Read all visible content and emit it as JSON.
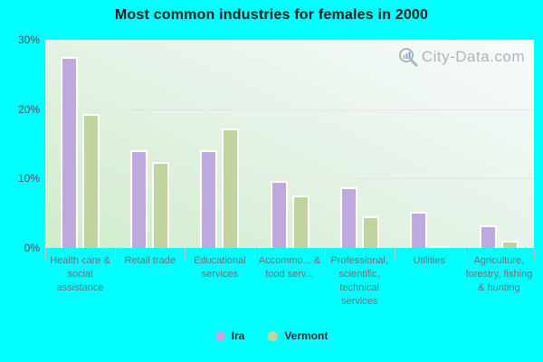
{
  "title": "Most common industries for females in 2000",
  "watermark": {
    "text": "City-Data.com",
    "icon": "magnifier-icon"
  },
  "colors": {
    "background": "#00ffff",
    "ira_bar": "#bda9dd",
    "vermont_bar": "#c1d4a0",
    "bar_border": "#ffffff",
    "gridline": "#eae2ea",
    "y_label": "#4f5058",
    "x_label": "#6e7277",
    "title_text": "#1b1b22",
    "legend_text": "#2e2e36",
    "watermark_text": "#9aa5ad"
  },
  "chart_data": {
    "type": "bar",
    "title": "Most common industries for females in 2000",
    "categories": [
      "Health care & social assistance",
      "Retail trade",
      "Educational services",
      "Accommo... & food serv...",
      "Professional, scientific, technical services",
      "Utilities",
      "Agriculture, forestry, fishing & hunting"
    ],
    "series": [
      {
        "name": "Ira",
        "color": "#bda9dd",
        "values": [
          27.5,
          14.1,
          14.1,
          9.7,
          8.8,
          5.2,
          3.3
        ]
      },
      {
        "name": "Vermont",
        "color": "#c1d4a0",
        "values": [
          19.3,
          12.4,
          17.2,
          7.6,
          4.6,
          0.3,
          1.1
        ]
      }
    ],
    "xlabel": "",
    "ylabel": "",
    "ylim": [
      0,
      30
    ],
    "yticks": [
      {
        "value": 0,
        "label": "0%"
      },
      {
        "value": 10,
        "label": "10%"
      },
      {
        "value": 20,
        "label": "20%"
      },
      {
        "value": 30,
        "label": "30%"
      }
    ],
    "grid": true,
    "legend_position": "bottom"
  }
}
